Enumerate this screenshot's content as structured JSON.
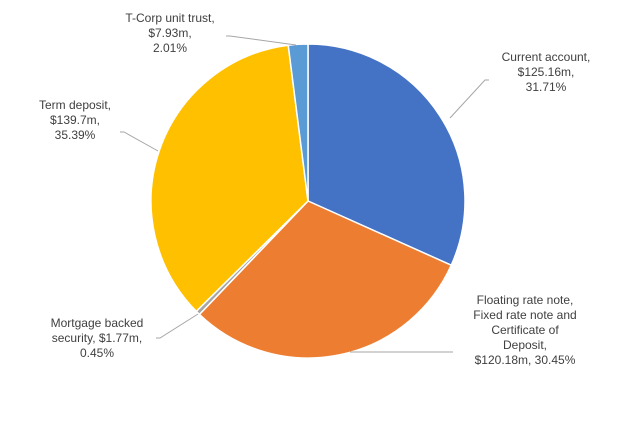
{
  "chart_data": {
    "type": "pie",
    "title": "",
    "slices": [
      {
        "label": "Current account",
        "value_text": "$125.16m,",
        "percent_text": "31.71%",
        "value": 125.16,
        "percent": 31.71,
        "color": "#4472C4",
        "label_lines": [
          "Current account,",
          "$125.16m,",
          "31.71%"
        ]
      },
      {
        "label": "Floating rate note, Fixed rate note and Certificate of Deposit",
        "value": 120.18,
        "percent": 30.45,
        "color": "#ED7D31",
        "label_lines": [
          "Floating rate note,",
          "Fixed rate note and",
          "Certificate of",
          "Deposit,",
          "$120.18m, 30.45%"
        ]
      },
      {
        "label": "Mortgage backed security",
        "value": 1.77,
        "percent": 0.45,
        "color": "#A5A5A5",
        "label_lines": [
          "Mortgage backed",
          "security, $1.77m,",
          "0.45%"
        ]
      },
      {
        "label": "Term deposit",
        "value": 139.7,
        "percent": 35.39,
        "color": "#FFC000",
        "label_lines": [
          "Term deposit,",
          "$139.7m,",
          "35.39%"
        ]
      },
      {
        "label": "T-Corp unit trust",
        "value": 7.93,
        "percent": 2.01,
        "color": "#5B9BD5",
        "label_lines": [
          "T-Corp unit trust,",
          "$7.93m,",
          "2.01%"
        ]
      }
    ]
  }
}
